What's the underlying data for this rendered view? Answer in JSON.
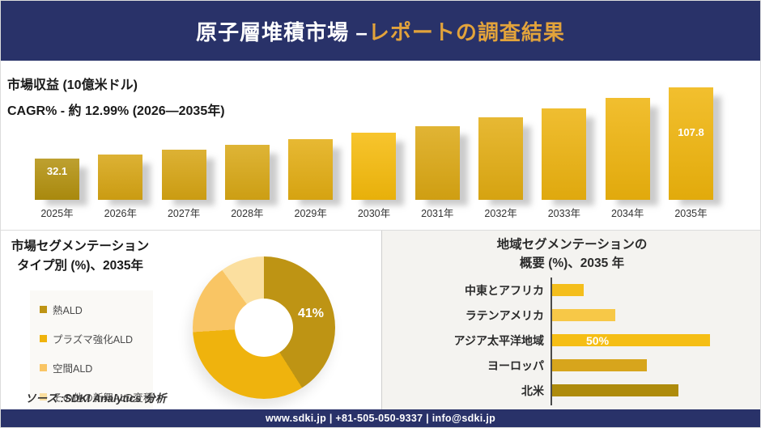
{
  "header": {
    "title_white": "原子層堆積市場 –",
    "title_gold": "レポートの調査結果"
  },
  "footer": {
    "contact": "www.sdki.jp | +81-505-050-9337 | info@sdki.jp"
  },
  "source_note": "ソース :SDKI Analytics 分析",
  "colors": {
    "navy": "#293269",
    "header_accent_gold": "#e2a33b",
    "right_panel_bg": "#f4f3f0",
    "legend_panel_bg": "#faf9f6"
  },
  "chart_data": [
    {
      "id": "revenue_by_year",
      "type": "bar",
      "title": "市場収益 (10億米ドル)",
      "subtitle": "CAGR% - 約 12.99% (2026―2035年)",
      "categories": [
        "2025年",
        "2026年",
        "2027年",
        "2028年",
        "2029年",
        "2030年",
        "2031年",
        "2032年",
        "2033年",
        "2034年",
        "2035年"
      ],
      "values": [
        32.1,
        36.3,
        41.0,
        46.3,
        52.3,
        59.1,
        66.8,
        75.5,
        85.3,
        96.4,
        107.8
      ],
      "value_labels": [
        "32.1",
        null,
        null,
        null,
        null,
        null,
        null,
        null,
        null,
        null,
        "107.8"
      ],
      "bar_colors": [
        "#b3910e",
        "#d7a513",
        "#d7a513",
        "#d9a815",
        "#e3ad12",
        "#f6bb0b",
        "#dca813",
        "#e3ad12",
        "#edb30f",
        "#efb40d",
        "#f0b50c"
      ],
      "ylabel": "市場収益 (10億米ドル)",
      "grid": false
    },
    {
      "id": "type_segmentation_2035",
      "type": "pie",
      "title_line1": "市場セグメンテーション",
      "title_line2": "タイプ別 (%)、2035年",
      "legend_position": "left",
      "slices": [
        {
          "label": "熱ALD",
          "value": 41,
          "color": "#be9414",
          "display_label": "41%"
        },
        {
          "label": "プラズマ強化ALD",
          "value": 33,
          "color": "#efb30d",
          "display_label": null
        },
        {
          "label": "空間ALD",
          "value": 16,
          "color": "#f9c564",
          "display_label": null
        },
        {
          "label": "その他の新興ALD変種",
          "value": 10,
          "color": "#fbdf9f",
          "display_label": null
        }
      ]
    },
    {
      "id": "region_segmentation_2035",
      "type": "bar",
      "orientation": "horizontal",
      "title_line1": "地域セグメンテーションの",
      "title_line2": "概要 (%)、2035 年",
      "categories": [
        "中東とアフリカ",
        "ラテンアメリカ",
        "アジア太平洋地域",
        "ヨーロッパ",
        "北米"
      ],
      "values": [
        10,
        20,
        50,
        30,
        40
      ],
      "value_labels": [
        null,
        null,
        "50%",
        null,
        null
      ],
      "bar_colors": [
        "#f4be1c",
        "#f7c847",
        "#f5be15",
        "#d7a51c",
        "#ae8b0c"
      ],
      "grid": false
    }
  ]
}
